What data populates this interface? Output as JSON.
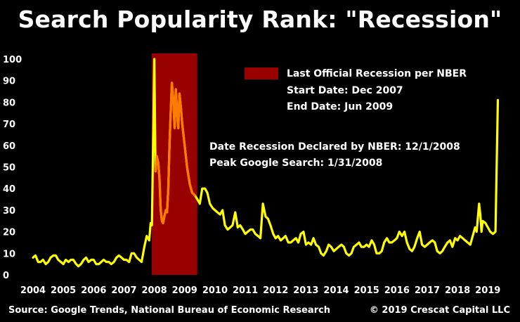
{
  "chart_data": {
    "type": "line",
    "title": "Search Popularity Rank: \"Recession\"",
    "xlabel": "",
    "ylabel": "",
    "xlim": [
      2004.0,
      2019.55
    ],
    "ylim": [
      0,
      100
    ],
    "y_ticks": [
      0,
      10,
      20,
      30,
      40,
      50,
      60,
      70,
      80,
      90,
      100
    ],
    "x_ticks": [
      "2004",
      "2005",
      "2006",
      "2007",
      "2008",
      "2009",
      "2010",
      "2011",
      "2012",
      "2013",
      "2014",
      "2015",
      "2016",
      "2017",
      "2018",
      "2019"
    ],
    "grid": false,
    "colors": {
      "line": "#ffff00",
      "line_recession": "#ff7a00",
      "recession_band": "#990000"
    },
    "recession": {
      "start": 2007.917,
      "end": 2009.417,
      "legend_label": "Last Official Recession per NBER",
      "start_label": "Start Date: Dec 2007",
      "end_label": "End Date: Jun 2009"
    },
    "annotations": [
      "Date Recession Declared by NBER: 12/1/2008",
      "Peak Google Search: 1/31/2008"
    ],
    "series": [
      {
        "points": [
          [
            2004.0,
            8
          ],
          [
            2004.08,
            9
          ],
          [
            2004.17,
            6
          ],
          [
            2004.25,
            6
          ],
          [
            2004.33,
            7
          ],
          [
            2004.42,
            5
          ],
          [
            2004.5,
            6
          ],
          [
            2004.58,
            8
          ],
          [
            2004.67,
            9
          ],
          [
            2004.75,
            9
          ],
          [
            2004.83,
            7
          ],
          [
            2004.92,
            6
          ],
          [
            2005.0,
            5
          ],
          [
            2005.08,
            7
          ],
          [
            2005.17,
            6
          ],
          [
            2005.25,
            7
          ],
          [
            2005.33,
            7
          ],
          [
            2005.42,
            5
          ],
          [
            2005.5,
            4
          ],
          [
            2005.58,
            5
          ],
          [
            2005.67,
            7
          ],
          [
            2005.75,
            8
          ],
          [
            2005.83,
            6
          ],
          [
            2005.92,
            7
          ],
          [
            2006.0,
            7
          ],
          [
            2006.08,
            5
          ],
          [
            2006.17,
            5
          ],
          [
            2006.25,
            6
          ],
          [
            2006.33,
            7
          ],
          [
            2006.42,
            6
          ],
          [
            2006.5,
            6
          ],
          [
            2006.58,
            5
          ],
          [
            2006.67,
            6
          ],
          [
            2006.75,
            8
          ],
          [
            2006.83,
            9
          ],
          [
            2006.92,
            8
          ],
          [
            2007.0,
            7
          ],
          [
            2007.08,
            7
          ],
          [
            2007.17,
            6
          ],
          [
            2007.25,
            10
          ],
          [
            2007.33,
            10
          ],
          [
            2007.42,
            8
          ],
          [
            2007.5,
            7
          ],
          [
            2007.58,
            6
          ],
          [
            2007.67,
            13
          ],
          [
            2007.75,
            18
          ],
          [
            2007.83,
            16
          ],
          [
            2007.88,
            24
          ],
          [
            2007.92,
            23
          ],
          [
            2008.0,
            100
          ],
          [
            2008.04,
            48
          ],
          [
            2008.08,
            55
          ],
          [
            2008.13,
            52
          ],
          [
            2008.17,
            45
          ],
          [
            2008.21,
            30
          ],
          [
            2008.25,
            25
          ],
          [
            2008.29,
            24
          ],
          [
            2008.33,
            27
          ],
          [
            2008.38,
            30
          ],
          [
            2008.42,
            29
          ],
          [
            2008.46,
            40
          ],
          [
            2008.5,
            60
          ],
          [
            2008.54,
            75
          ],
          [
            2008.58,
            89
          ],
          [
            2008.63,
            80
          ],
          [
            2008.67,
            68
          ],
          [
            2008.71,
            86
          ],
          [
            2008.75,
            75
          ],
          [
            2008.79,
            68
          ],
          [
            2008.83,
            84
          ],
          [
            2008.88,
            77
          ],
          [
            2008.92,
            70
          ],
          [
            2009.0,
            60
          ],
          [
            2009.08,
            50
          ],
          [
            2009.17,
            42
          ],
          [
            2009.25,
            38
          ],
          [
            2009.33,
            37
          ],
          [
            2009.42,
            35
          ],
          [
            2009.5,
            33
          ],
          [
            2009.58,
            40
          ],
          [
            2009.67,
            40
          ],
          [
            2009.75,
            38
          ],
          [
            2009.83,
            33
          ],
          [
            2009.92,
            31
          ],
          [
            2010.0,
            30
          ],
          [
            2010.08,
            29
          ],
          [
            2010.17,
            28
          ],
          [
            2010.25,
            30
          ],
          [
            2010.33,
            23
          ],
          [
            2010.42,
            21
          ],
          [
            2010.5,
            22
          ],
          [
            2010.58,
            23
          ],
          [
            2010.67,
            29
          ],
          [
            2010.75,
            22
          ],
          [
            2010.83,
            23
          ],
          [
            2010.92,
            21
          ],
          [
            2011.0,
            19
          ],
          [
            2011.08,
            20
          ],
          [
            2011.17,
            21
          ],
          [
            2011.25,
            21
          ],
          [
            2011.33,
            19
          ],
          [
            2011.42,
            18
          ],
          [
            2011.5,
            17
          ],
          [
            2011.58,
            33
          ],
          [
            2011.67,
            27
          ],
          [
            2011.75,
            26
          ],
          [
            2011.83,
            23
          ],
          [
            2011.92,
            19
          ],
          [
            2012.0,
            17
          ],
          [
            2012.08,
            18
          ],
          [
            2012.17,
            16
          ],
          [
            2012.25,
            17
          ],
          [
            2012.33,
            18
          ],
          [
            2012.42,
            15
          ],
          [
            2012.5,
            15
          ],
          [
            2012.58,
            16
          ],
          [
            2012.67,
            17
          ],
          [
            2012.75,
            15
          ],
          [
            2012.83,
            19
          ],
          [
            2012.92,
            20
          ],
          [
            2013.0,
            14
          ],
          [
            2013.08,
            15
          ],
          [
            2013.17,
            14
          ],
          [
            2013.25,
            17
          ],
          [
            2013.33,
            14
          ],
          [
            2013.42,
            13
          ],
          [
            2013.5,
            10
          ],
          [
            2013.58,
            9
          ],
          [
            2013.67,
            11
          ],
          [
            2013.75,
            14
          ],
          [
            2013.83,
            13
          ],
          [
            2013.92,
            11
          ],
          [
            2014.0,
            12
          ],
          [
            2014.08,
            13
          ],
          [
            2014.17,
            14
          ],
          [
            2014.25,
            13
          ],
          [
            2014.33,
            10
          ],
          [
            2014.42,
            9
          ],
          [
            2014.5,
            10
          ],
          [
            2014.58,
            13
          ],
          [
            2014.67,
            14
          ],
          [
            2014.75,
            15
          ],
          [
            2014.83,
            13
          ],
          [
            2014.92,
            13
          ],
          [
            2015.0,
            14
          ],
          [
            2015.08,
            13
          ],
          [
            2015.17,
            16
          ],
          [
            2015.25,
            14
          ],
          [
            2015.33,
            10
          ],
          [
            2015.42,
            10
          ],
          [
            2015.5,
            11
          ],
          [
            2015.58,
            15
          ],
          [
            2015.67,
            17
          ],
          [
            2015.75,
            15
          ],
          [
            2015.83,
            15
          ],
          [
            2015.92,
            16
          ],
          [
            2016.0,
            17
          ],
          [
            2016.08,
            20
          ],
          [
            2016.17,
            18
          ],
          [
            2016.25,
            20
          ],
          [
            2016.33,
            15
          ],
          [
            2016.42,
            12
          ],
          [
            2016.5,
            11
          ],
          [
            2016.58,
            13
          ],
          [
            2016.67,
            17
          ],
          [
            2016.75,
            20
          ],
          [
            2016.83,
            14
          ],
          [
            2016.92,
            13
          ],
          [
            2017.0,
            14
          ],
          [
            2017.08,
            15
          ],
          [
            2017.17,
            16
          ],
          [
            2017.25,
            15
          ],
          [
            2017.33,
            11
          ],
          [
            2017.42,
            10
          ],
          [
            2017.5,
            11
          ],
          [
            2017.58,
            13
          ],
          [
            2017.67,
            15
          ],
          [
            2017.75,
            16
          ],
          [
            2017.83,
            13
          ],
          [
            2017.92,
            17
          ],
          [
            2018.0,
            16
          ],
          [
            2018.08,
            18
          ],
          [
            2018.17,
            17
          ],
          [
            2018.25,
            16
          ],
          [
            2018.33,
            15
          ],
          [
            2018.42,
            14
          ],
          [
            2018.5,
            18
          ],
          [
            2018.58,
            22
          ],
          [
            2018.63,
            20
          ],
          [
            2018.71,
            33
          ],
          [
            2018.75,
            28
          ],
          [
            2018.79,
            20
          ],
          [
            2018.83,
            25
          ],
          [
            2018.92,
            24
          ],
          [
            2019.0,
            22
          ],
          [
            2019.08,
            20
          ],
          [
            2019.17,
            19
          ],
          [
            2019.25,
            20
          ],
          [
            2019.33,
            81
          ]
        ]
      }
    ]
  },
  "footer": {
    "source": "Source: Google Trends, National Bureau of Economic Research",
    "copyright": "© 2019 Crescat Capital LLC"
  }
}
